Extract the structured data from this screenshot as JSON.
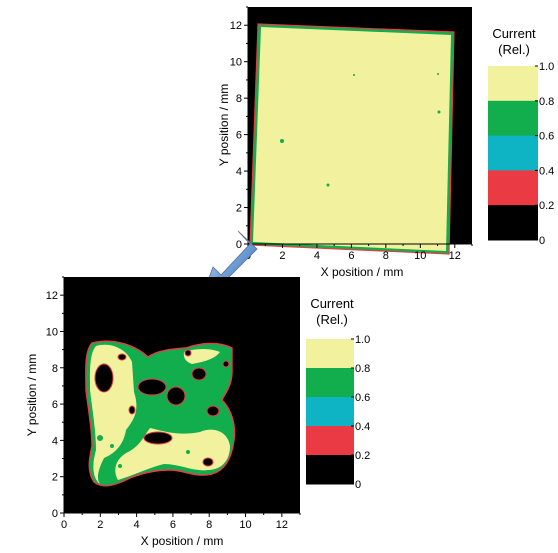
{
  "chart_data": [
    {
      "type": "heatmap",
      "xlabel": "X position / mm",
      "ylabel": "Y position / mm",
      "xlim": [
        0,
        13
      ],
      "ylim": [
        0,
        13
      ],
      "x_ticks": [
        0,
        2,
        4,
        6,
        8,
        10,
        12
      ],
      "y_ticks": [
        0,
        2,
        4,
        6,
        8,
        10,
        12
      ],
      "colorbar": {
        "title_line1": "Current",
        "title_line2": "(Rel.)",
        "ticks": [
          "1.0",
          "0.8",
          "0.6",
          "0.4",
          "0.2",
          "0"
        ],
        "bands": [
          {
            "range": [
              0.8,
              1.0
            ],
            "color": "#f2f29e"
          },
          {
            "range": [
              0.6,
              0.8
            ],
            "color": "#12ad4c"
          },
          {
            "range": [
              0.4,
              0.6
            ],
            "color": "#0fb4c4"
          },
          {
            "range": [
              0.2,
              0.4
            ],
            "color": "#ea3b44"
          },
          {
            "range": [
              0.0,
              0.2
            ],
            "color": "#000000"
          }
        ]
      },
      "background_color": "#000000",
      "dominant_level": "0.8-1.0"
    },
    {
      "type": "heatmap",
      "xlabel": "X position / mm",
      "ylabel": "Y position / mm",
      "xlim": [
        0,
        13
      ],
      "ylim": [
        0,
        13
      ],
      "x_ticks": [
        0,
        2,
        4,
        6,
        8,
        10,
        12
      ],
      "y_ticks": [
        0,
        2,
        4,
        6,
        8,
        10,
        12
      ],
      "colorbar": {
        "title_line1": "Current",
        "title_line2": "(Rel.)",
        "ticks": [
          "1.0",
          "0.8",
          "0.6",
          "0.4",
          "0.2",
          "0"
        ],
        "bands": [
          {
            "range": [
              0.8,
              1.0
            ],
            "color": "#f2f29e"
          },
          {
            "range": [
              0.6,
              0.8
            ],
            "color": "#12ad4c"
          },
          {
            "range": [
              0.4,
              0.6
            ],
            "color": "#0fb4c4"
          },
          {
            "range": [
              0.2,
              0.4
            ],
            "color": "#ea3b44"
          },
          {
            "range": [
              0.0,
              0.2
            ],
            "color": "#000000"
          }
        ]
      },
      "background_color": "#000000",
      "dominant_level": "mixed 0.6-1.0 with holes"
    }
  ],
  "arrow": {
    "color_start": "#c8e4f8",
    "color_end": "#1f5fb8"
  }
}
